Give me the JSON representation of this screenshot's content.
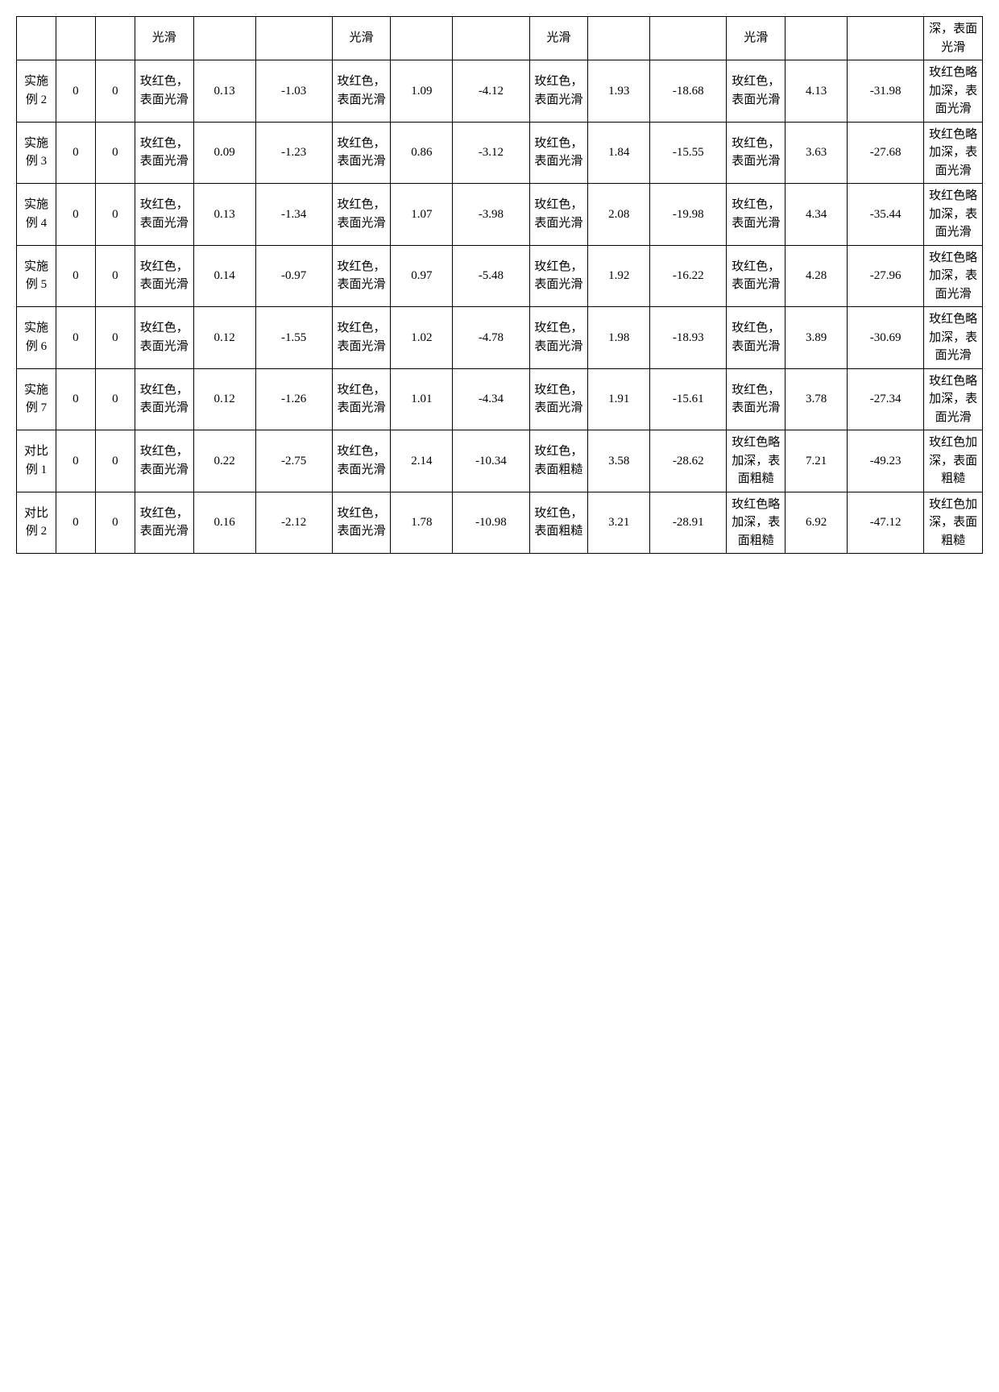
{
  "table": {
    "columns": 16,
    "col_classes": [
      "col-label",
      "col-num",
      "col-num",
      "col-desc",
      "col-val1",
      "col-val2",
      "col-desc",
      "col-val1",
      "col-val2",
      "col-desc",
      "col-val1",
      "col-val2",
      "col-desc",
      "col-val1",
      "col-val2",
      "col-desc"
    ],
    "rows": [
      [
        "",
        "",
        "",
        "光滑",
        "",
        "",
        "光滑",
        "",
        "",
        "光滑",
        "",
        "",
        "光滑",
        "",
        "",
        "深，表面光滑"
      ],
      [
        "实施例 2",
        "0",
        "0",
        "玫红色，表面光滑",
        "0.13",
        "-1.03",
        "玫红色，表面光滑",
        "1.09",
        "-4.12",
        "玫红色，表面光滑",
        "1.93",
        "-18.68",
        "玫红色，表面光滑",
        "4.13",
        "-31.98",
        "玫红色略加深，表面光滑"
      ],
      [
        "实施例 3",
        "0",
        "0",
        "玫红色，表面光滑",
        "0.09",
        "-1.23",
        "玫红色，表面光滑",
        "0.86",
        "-3.12",
        "玫红色，表面光滑",
        "1.84",
        "-15.55",
        "玫红色，表面光滑",
        "3.63",
        "-27.68",
        "玫红色略加深，表面光滑"
      ],
      [
        "实施例 4",
        "0",
        "0",
        "玫红色，表面光滑",
        "0.13",
        "-1.34",
        "玫红色，表面光滑",
        "1.07",
        "-3.98",
        "玫红色，表面光滑",
        "2.08",
        "-19.98",
        "玫红色，表面光滑",
        "4.34",
        "-35.44",
        "玫红色略加深，表面光滑"
      ],
      [
        "实施例 5",
        "0",
        "0",
        "玫红色，表面光滑",
        "0.14",
        "-0.97",
        "玫红色，表面光滑",
        "0.97",
        "-5.48",
        "玫红色，表面光滑",
        "1.92",
        "-16.22",
        "玫红色，表面光滑",
        "4.28",
        "-27.96",
        "玫红色略加深，表面光滑"
      ],
      [
        "实施例 6",
        "0",
        "0",
        "玫红色，表面光滑",
        "0.12",
        "-1.55",
        "玫红色，表面光滑",
        "1.02",
        "-4.78",
        "玫红色，表面光滑",
        "1.98",
        "-18.93",
        "玫红色，表面光滑",
        "3.89",
        "-30.69",
        "玫红色略加深，表面光滑"
      ],
      [
        "实施例 7",
        "0",
        "0",
        "玫红色，表面光滑",
        "0.12",
        "-1.26",
        "玫红色，表面光滑",
        "1.01",
        "-4.34",
        "玫红色，表面光滑",
        "1.91",
        "-15.61",
        "玫红色，表面光滑",
        "3.78",
        "-27.34",
        "玫红色略加深，表面光滑"
      ],
      [
        "对比例 1",
        "0",
        "0",
        "玫红色，表面光滑",
        "0.22",
        "-2.75",
        "玫红色，表面光滑",
        "2.14",
        "-10.34",
        "玫红色，表面粗糙",
        "3.58",
        "-28.62",
        "玫红色略加深，表面粗糙",
        "7.21",
        "-49.23",
        "玫红色加深，表面粗糙"
      ],
      [
        "对比例 2",
        "0",
        "0",
        "玫红色，表面光滑",
        "0.16",
        "-2.12",
        "玫红色，表面光滑",
        "1.78",
        "-10.98",
        "玫红色，表面粗糙",
        "3.21",
        "-28.91",
        "玫红色略加深，表面粗糙",
        "6.92",
        "-47.12",
        "玫红色加深，表面粗糙"
      ]
    ]
  }
}
